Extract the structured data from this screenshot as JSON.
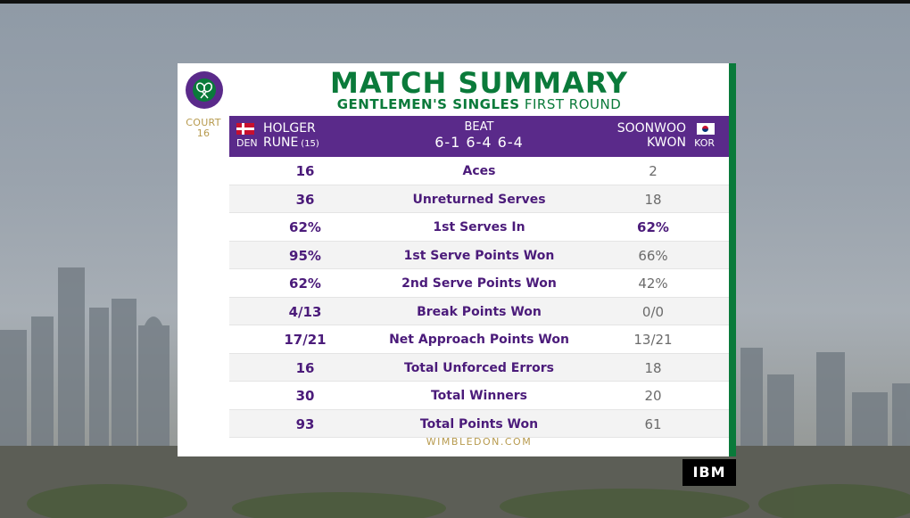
{
  "brand": {
    "logo_label": "THE CHAMPIONSHIPS WIMBLEDON",
    "court_label": "COURT",
    "court_number": "16",
    "footer": "WIMBLEDON.COM",
    "sponsor": "IBM",
    "colors": {
      "green": "#0a7a3a",
      "purple": "#5a2a8a",
      "gold": "#b79a4e"
    }
  },
  "title": "MATCH SUMMARY",
  "subtitle": {
    "bold": "GENTLEMEN'S SINGLES",
    "rest": "FIRST ROUND"
  },
  "match": {
    "player1": {
      "first": "HOLGER",
      "last": "RUNE",
      "seed": "(15)",
      "country": "DEN",
      "flag": "denmark-flag"
    },
    "result": "BEAT",
    "score": "6-1 6-4 6-4",
    "player2": {
      "first": "SOONWOO",
      "last": "KWON",
      "country": "KOR",
      "flag": "korea-flag"
    }
  },
  "stats": [
    {
      "p1": "16",
      "label": "Aces",
      "p2": "2",
      "p2_bold": false
    },
    {
      "p1": "36",
      "label": "Unreturned Serves",
      "p2": "18",
      "p2_bold": false
    },
    {
      "p1": "62%",
      "label": "1st Serves In",
      "p2": "62%",
      "p2_bold": true
    },
    {
      "p1": "95%",
      "label": "1st Serve Points Won",
      "p2": "66%",
      "p2_bold": false
    },
    {
      "p1": "62%",
      "label": "2nd Serve Points Won",
      "p2": "42%",
      "p2_bold": false
    },
    {
      "p1": "4/13",
      "label": "Break Points Won",
      "p2": "0/0",
      "p2_bold": false
    },
    {
      "p1": "17/21",
      "label": "Net Approach Points Won",
      "p2": "13/21",
      "p2_bold": false
    },
    {
      "p1": "16",
      "label": "Total Unforced Errors",
      "p2": "18",
      "p2_bold": false
    },
    {
      "p1": "30",
      "label": "Total Winners",
      "p2": "20",
      "p2_bold": false
    },
    {
      "p1": "93",
      "label": "Total Points Won",
      "p2": "61",
      "p2_bold": false
    }
  ]
}
